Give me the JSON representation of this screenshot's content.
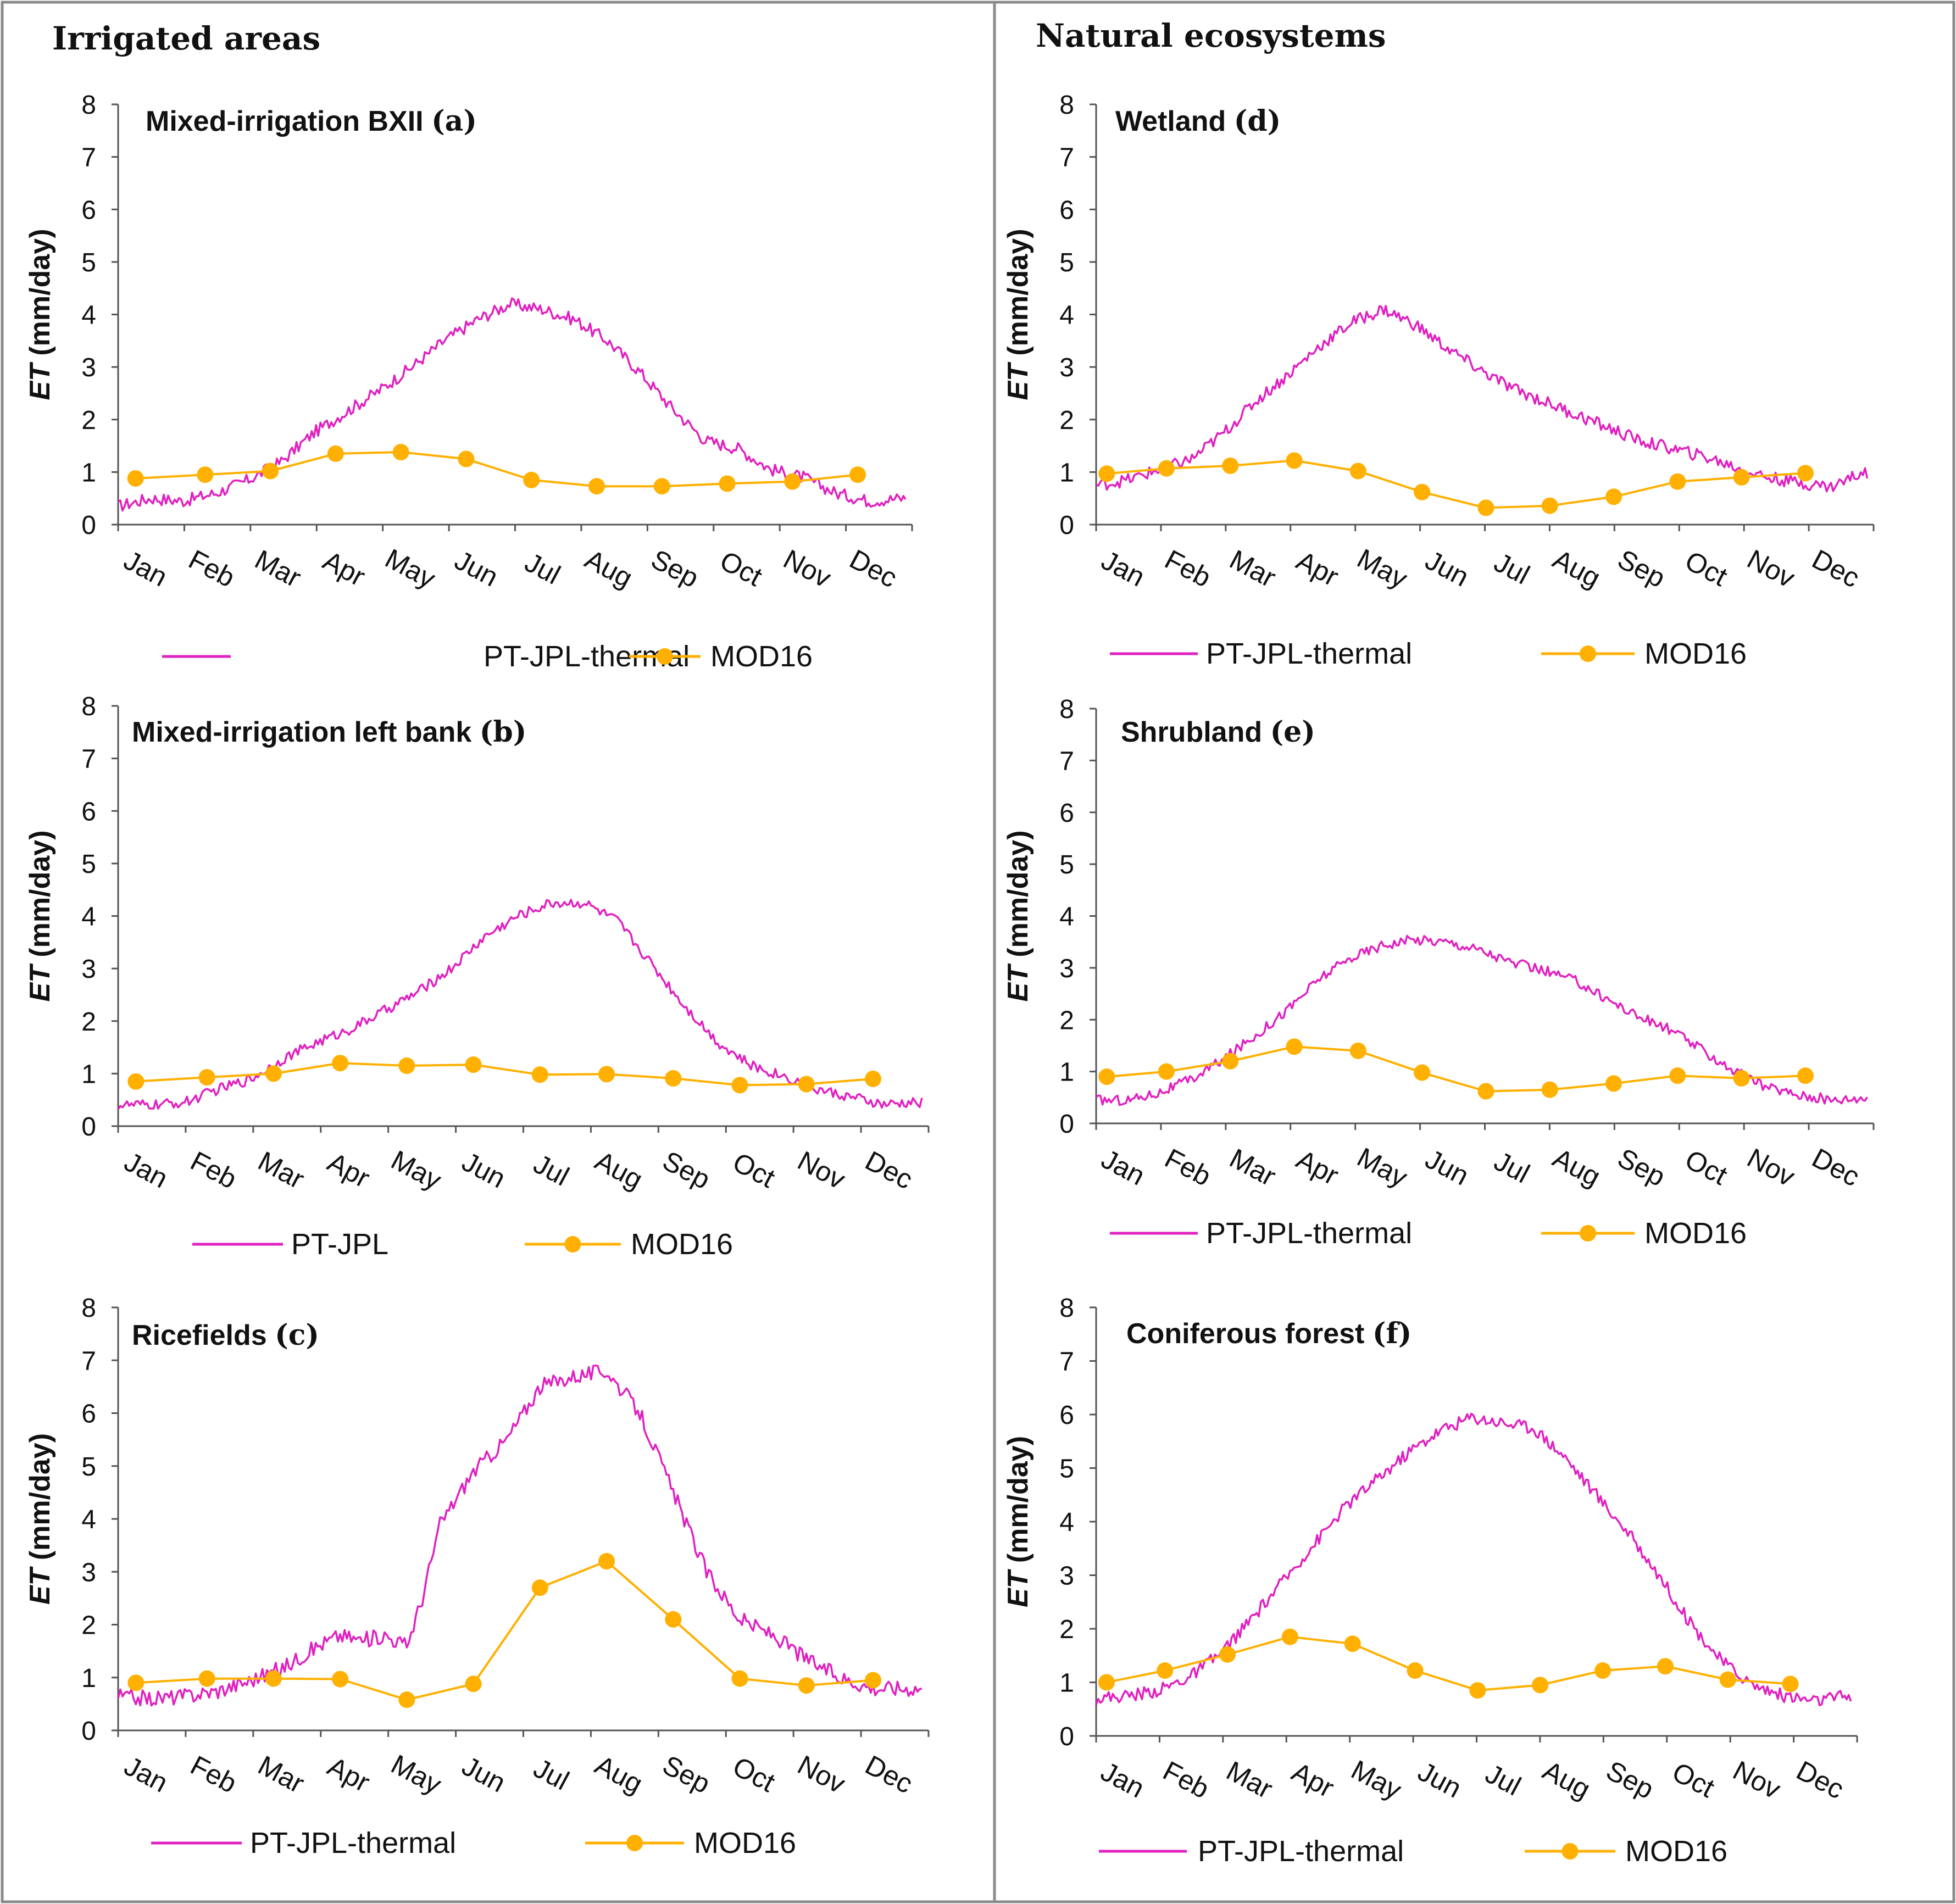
{
  "sections": {
    "left": "Irrigated areas",
    "right": "Natural ecosystems"
  },
  "colors": {
    "pt_jpl": "#e020c0",
    "mod16": "#ffb000",
    "axis": "#555555",
    "frame": "#7f7f7f"
  },
  "chart_data": [
    {
      "id": "a",
      "type": "line",
      "title": "Mixed-irrigation BXII",
      "letter": "(a)",
      "ylabel_bold": "ET",
      "ylabel_rest": " (mm/day)",
      "ylim": [
        0,
        8
      ],
      "yticks": [
        0,
        1,
        2,
        3,
        4,
        5,
        6,
        7,
        8
      ],
      "months": [
        "Jan",
        "Feb",
        "Mar",
        "Apr",
        "May",
        "Jun",
        "Jul",
        "Aug",
        "Sep",
        "Oct",
        "Nov",
        "Dec"
      ],
      "series": [
        {
          "name": "PT-JPL-thermal",
          "marker": false,
          "x": [
            0,
            15,
            30,
            45,
            60,
            75,
            90,
            105,
            120,
            135,
            150,
            165,
            180,
            195,
            210,
            225,
            240,
            255,
            270,
            285,
            300,
            315,
            330,
            345,
            360
          ],
          "y": [
            0.35,
            0.5,
            0.45,
            0.6,
            0.85,
            1.2,
            1.75,
            2.15,
            2.55,
            3.0,
            3.5,
            3.9,
            4.2,
            4.1,
            3.9,
            3.5,
            2.9,
            2.2,
            1.6,
            1.45,
            1.05,
            0.9,
            0.6,
            0.45,
            0.5
          ],
          "noise": 0.12
        },
        {
          "name": "MOD16",
          "marker": true,
          "x": [
            8,
            40,
            70,
            100,
            130,
            160,
            190,
            220,
            250,
            280,
            310,
            340
          ],
          "y": [
            0.88,
            0.95,
            1.02,
            1.35,
            1.38,
            1.25,
            0.85,
            0.73,
            0.73,
            0.78,
            0.82,
            0.95
          ]
        }
      ]
    },
    {
      "id": "b",
      "type": "line",
      "title": "Mixed-irrigation left bank",
      "letter": "(b)",
      "ylabel_bold": "ET",
      "ylabel_rest": " (mm/day)",
      "ylim": [
        0,
        8
      ],
      "yticks": [
        0,
        1,
        2,
        3,
        4,
        5,
        6,
        7,
        8
      ],
      "months": [
        "Jan",
        "Feb",
        "Mar",
        "Apr",
        "May",
        "Jun",
        "Jul",
        "Aug",
        "Sep",
        "Oct",
        "Nov",
        "Dec"
      ],
      "series": [
        {
          "name": "PT-JPL",
          "marker": false,
          "x": [
            0,
            15,
            30,
            45,
            60,
            75,
            90,
            105,
            120,
            135,
            150,
            165,
            180,
            195,
            210,
            225,
            240,
            255,
            270,
            285,
            300,
            315,
            330,
            345,
            360
          ],
          "y": [
            0.4,
            0.4,
            0.45,
            0.7,
            0.9,
            1.3,
            1.6,
            1.85,
            2.2,
            2.55,
            3.0,
            3.6,
            4.0,
            4.25,
            4.25,
            3.9,
            3.1,
            2.3,
            1.6,
            1.15,
            0.95,
            0.7,
            0.55,
            0.4,
            0.45
          ],
          "noise": 0.1
        },
        {
          "name": "MOD16",
          "marker": true,
          "x": [
            8,
            40,
            70,
            100,
            130,
            160,
            190,
            220,
            250,
            280,
            310,
            340
          ],
          "y": [
            0.85,
            0.93,
            1.0,
            1.2,
            1.15,
            1.17,
            0.98,
            0.99,
            0.91,
            0.78,
            0.8,
            0.9
          ]
        }
      ]
    },
    {
      "id": "c",
      "type": "line",
      "title": "Ricefields",
      "letter": "(c)",
      "ylabel_bold": "ET",
      "ylabel_rest": " (mm/day)",
      "ylim": [
        0,
        8
      ],
      "yticks": [
        0,
        1,
        2,
        3,
        4,
        5,
        6,
        7,
        8
      ],
      "months": [
        "Jan",
        "Feb",
        "Mar",
        "Apr",
        "May",
        "Jun",
        "Jul",
        "Aug",
        "Sep",
        "Oct",
        "Nov",
        "Dec"
      ],
      "series": [
        {
          "name": "PT-JPL-thermal",
          "marker": false,
          "x": [
            0,
            15,
            30,
            45,
            60,
            75,
            90,
            100,
            110,
            120,
            130,
            137,
            145,
            160,
            175,
            190,
            205,
            220,
            235,
            250,
            265,
            280,
            295,
            310,
            325,
            340,
            360
          ],
          "y": [
            0.65,
            0.6,
            0.65,
            0.75,
            0.95,
            1.2,
            1.6,
            1.8,
            1.7,
            1.8,
            1.6,
            2.5,
            3.9,
            4.9,
            5.5,
            6.5,
            6.7,
            6.8,
            6.0,
            4.5,
            3.0,
            2.1,
            1.8,
            1.35,
            1.0,
            0.8,
            0.8
          ],
          "noise": 0.15
        },
        {
          "name": "MOD16",
          "marker": true,
          "x": [
            8,
            40,
            70,
            100,
            130,
            160,
            190,
            220,
            250,
            280,
            310,
            340
          ],
          "y": [
            0.9,
            0.98,
            0.98,
            0.97,
            0.58,
            0.88,
            2.7,
            3.2,
            2.1,
            0.98,
            0.85,
            0.95
          ]
        }
      ]
    },
    {
      "id": "d",
      "type": "line",
      "title": "Wetland",
      "letter": "(d)",
      "ylabel_bold": "ET",
      "ylabel_rest": " (mm/day)",
      "ylim": [
        0,
        8
      ],
      "yticks": [
        0,
        1,
        2,
        3,
        4,
        5,
        6,
        7,
        8
      ],
      "months": [
        "Jan",
        "Feb",
        "Mar",
        "Apr",
        "May",
        "Jun",
        "Jul",
        "Aug",
        "Sep",
        "Oct",
        "Nov",
        "Dec"
      ],
      "series": [
        {
          "name": "PT-JPL-thermal",
          "marker": false,
          "x": [
            0,
            15,
            30,
            45,
            60,
            75,
            90,
            105,
            120,
            135,
            150,
            165,
            180,
            195,
            210,
            225,
            240,
            255,
            270,
            285,
            300,
            315,
            330,
            345,
            360
          ],
          "y": [
            0.75,
            0.85,
            1.05,
            1.25,
            1.75,
            2.35,
            2.85,
            3.4,
            3.85,
            4.1,
            3.8,
            3.35,
            2.95,
            2.6,
            2.35,
            2.1,
            1.85,
            1.6,
            1.45,
            1.3,
            1.1,
            0.9,
            0.8,
            0.72,
            1.0
          ],
          "noise": 0.12
        },
        {
          "name": "MOD16",
          "marker": true,
          "x": [
            5,
            33,
            63,
            93,
            123,
            153,
            183,
            213,
            243,
            273,
            303,
            333
          ],
          "y": [
            0.97,
            1.07,
            1.12,
            1.22,
            1.02,
            0.62,
            0.32,
            0.36,
            0.53,
            0.82,
            0.9,
            0.98
          ]
        }
      ]
    },
    {
      "id": "e",
      "type": "line",
      "title": "Shrubland",
      "letter": "(e)",
      "ylabel_bold": "ET",
      "ylabel_rest": " (mm/day)",
      "ylim": [
        0,
        8
      ],
      "yticks": [
        0,
        1,
        2,
        3,
        4,
        5,
        6,
        7,
        8
      ],
      "months": [
        "Jan",
        "Feb",
        "Mar",
        "Apr",
        "May",
        "Jun",
        "Jul",
        "Aug",
        "Sep",
        "Oct",
        "Nov",
        "Dec"
      ],
      "series": [
        {
          "name": "PT-JPL-thermal",
          "marker": false,
          "x": [
            0,
            15,
            30,
            45,
            60,
            75,
            90,
            105,
            120,
            135,
            150,
            165,
            180,
            195,
            210,
            225,
            240,
            255,
            270,
            285,
            300,
            315,
            330,
            345,
            360
          ],
          "y": [
            0.45,
            0.45,
            0.6,
            0.85,
            1.25,
            1.7,
            2.2,
            2.8,
            3.2,
            3.45,
            3.55,
            3.5,
            3.35,
            3.1,
            2.95,
            2.75,
            2.4,
            2.05,
            1.8,
            1.4,
            1.0,
            0.7,
            0.55,
            0.45,
            0.5
          ],
          "noise": 0.1
        },
        {
          "name": "MOD16",
          "marker": true,
          "x": [
            5,
            33,
            63,
            93,
            123,
            153,
            183,
            213,
            243,
            273,
            303,
            333
          ],
          "y": [
            0.9,
            1.0,
            1.2,
            1.48,
            1.4,
            0.98,
            0.62,
            0.65,
            0.77,
            0.92,
            0.87,
            0.92
          ]
        }
      ]
    },
    {
      "id": "f",
      "type": "line",
      "title": "Coniferous forest",
      "letter": "(f)",
      "ylabel_bold": "ET",
      "ylabel_rest": " (mm/day)",
      "ylim": [
        0,
        8
      ],
      "yticks": [
        0,
        1,
        2,
        3,
        4,
        5,
        6,
        7,
        8
      ],
      "months": [
        "Jan",
        "Feb",
        "Mar",
        "Apr",
        "May",
        "Jun",
        "Jul",
        "Aug",
        "Sep",
        "Oct",
        "Nov",
        "Dec"
      ],
      "series": [
        {
          "name": "PT-JPL-thermal",
          "marker": false,
          "x": [
            0,
            15,
            30,
            45,
            60,
            75,
            90,
            105,
            120,
            135,
            150,
            165,
            180,
            195,
            210,
            225,
            240,
            255,
            270,
            285,
            300,
            315,
            330,
            345,
            360
          ],
          "y": [
            0.7,
            0.75,
            0.85,
            1.1,
            1.55,
            2.2,
            2.9,
            3.6,
            4.3,
            4.8,
            5.3,
            5.7,
            5.95,
            5.85,
            5.75,
            5.2,
            4.5,
            3.8,
            3.0,
            2.1,
            1.4,
            0.95,
            0.75,
            0.65,
            0.75
          ],
          "noise": 0.12
        },
        {
          "name": "MOD16",
          "marker": true,
          "x": [
            5,
            33,
            63,
            93,
            123,
            153,
            183,
            213,
            243,
            273,
            303,
            333
          ],
          "y": [
            1.0,
            1.22,
            1.52,
            1.85,
            1.72,
            1.22,
            0.85,
            0.95,
            1.22,
            1.3,
            1.05,
            0.97
          ]
        }
      ]
    }
  ]
}
